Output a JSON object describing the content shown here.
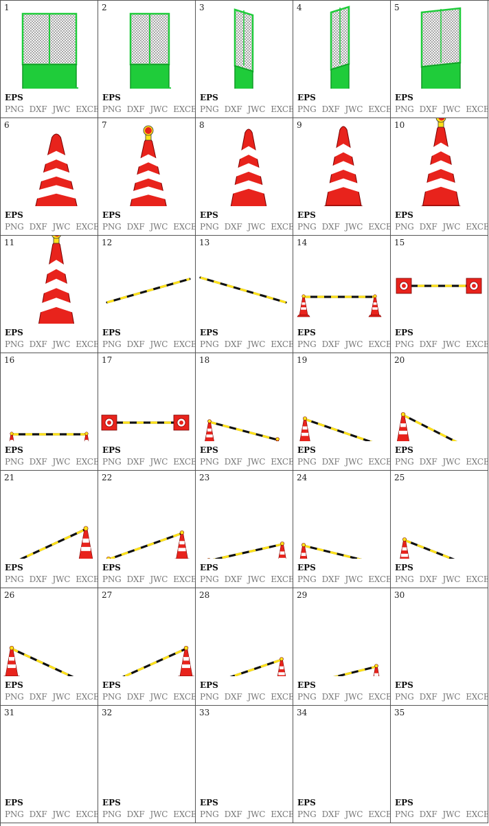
{
  "formats": {
    "eps": "EPS",
    "png": "PNG",
    "dxf": "DXF",
    "jwc": "JWC",
    "excel": "EXCEL"
  },
  "colors": {
    "fence_green": "#1fcc3a",
    "cone_red": "#e8231c",
    "cone_white": "#ffffff",
    "bar_yellow": "#ffe21a",
    "bar_black": "#111111"
  },
  "cells": [
    {
      "number": "1",
      "icon": "fence-front-icon"
    },
    {
      "number": "2",
      "icon": "fence-front-icon"
    },
    {
      "number": "3",
      "icon": "fence-side-icon"
    },
    {
      "number": "4",
      "icon": "fence-side-icon"
    },
    {
      "number": "5",
      "icon": "fence-angled-icon"
    },
    {
      "number": "6",
      "icon": "cone-front-icon"
    },
    {
      "number": "7",
      "icon": "cone-lamp-front-icon"
    },
    {
      "number": "8",
      "icon": "cone-perspective-icon"
    },
    {
      "number": "9",
      "icon": "cone-perspective-icon"
    },
    {
      "number": "10",
      "icon": "cone-lamp-perspective-icon"
    },
    {
      "number": "11",
      "icon": "cone-lamp-perspective-icon"
    },
    {
      "number": "12",
      "icon": "cone-bar-rising-icon"
    },
    {
      "number": "13",
      "icon": "cone-bar-falling-icon"
    },
    {
      "number": "14",
      "icon": "cones-with-bar-icon"
    },
    {
      "number": "15",
      "icon": "cones-top-view-icon"
    },
    {
      "number": "16",
      "icon": "cones-with-bar-icon"
    },
    {
      "number": "17",
      "icon": "cones-top-view-icon"
    },
    {
      "number": "18",
      "icon": "cones-with-bar-icon"
    },
    {
      "number": "19",
      "icon": "cones-with-bar-icon"
    },
    {
      "number": "20",
      "icon": "cones-with-bar-icon"
    },
    {
      "number": "21",
      "icon": "cones-with-bar-icon"
    },
    {
      "number": "22",
      "icon": "cones-with-bar-icon"
    },
    {
      "number": "23",
      "icon": "cones-with-bar-icon"
    },
    {
      "number": "24",
      "icon": "cones-with-bar-icon"
    },
    {
      "number": "25",
      "icon": "cones-with-bar-icon"
    },
    {
      "number": "26",
      "icon": "cones-with-bar-icon"
    },
    {
      "number": "27",
      "icon": "cones-with-bar-icon"
    },
    {
      "number": "28",
      "icon": "cones-with-bar-icon"
    },
    {
      "number": "29",
      "icon": "cones-with-bar-icon"
    },
    {
      "number": "30",
      "icon": ""
    },
    {
      "number": "31",
      "icon": ""
    },
    {
      "number": "32",
      "icon": ""
    },
    {
      "number": "33",
      "icon": ""
    },
    {
      "number": "34",
      "icon": ""
    },
    {
      "number": "35",
      "icon": ""
    }
  ]
}
